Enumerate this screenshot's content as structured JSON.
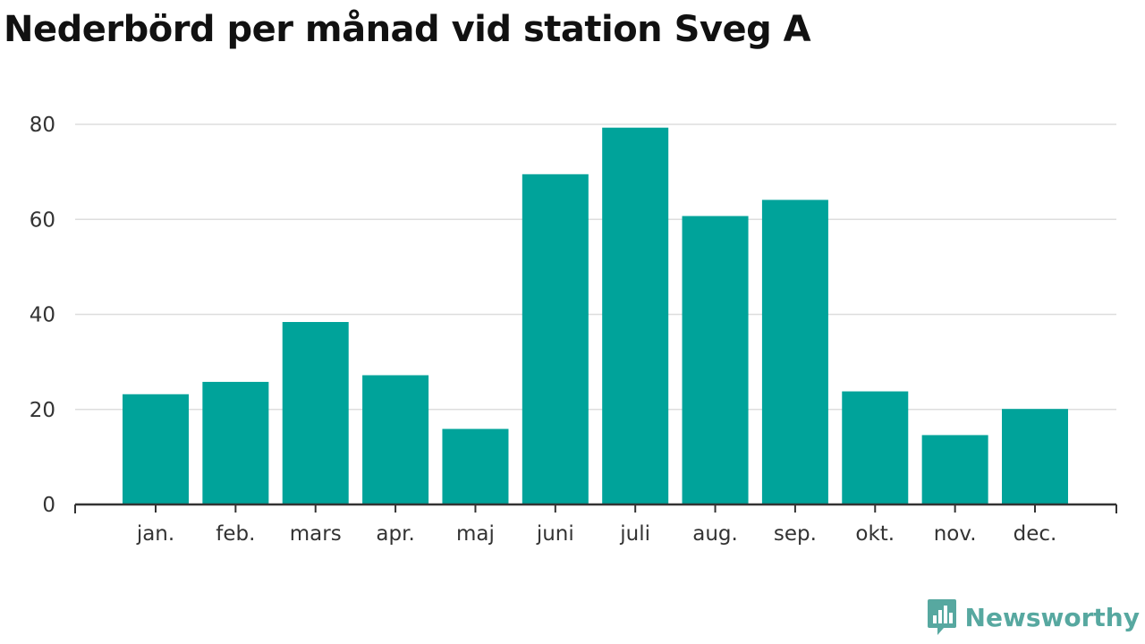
{
  "title": "Nederbörd per månad vid station Sveg A",
  "brand": {
    "name": "Newsworthy",
    "logo_icon": "bar-chart-speech-bubble-icon",
    "color": "#57a8a0"
  },
  "colors": {
    "bar": "#00a39a",
    "grid": "#dddddd",
    "axis": "#333333"
  },
  "chart_data": {
    "type": "bar",
    "title": "Nederbörd per månad vid station Sveg A",
    "xlabel": "",
    "ylabel": "",
    "categories": [
      "jan.",
      "feb.",
      "mars",
      "apr.",
      "maj",
      "juni",
      "juli",
      "aug.",
      "sep.",
      "okt.",
      "nov.",
      "dec."
    ],
    "values": [
      23.2,
      25.8,
      38.4,
      27.2,
      15.9,
      69.5,
      79.3,
      60.7,
      64.1,
      23.8,
      14.6,
      20.1
    ],
    "ylim": [
      0,
      80
    ],
    "yticks": [
      "0",
      "20",
      "40",
      "60",
      "80"
    ],
    "grid": true,
    "legend": "none"
  }
}
